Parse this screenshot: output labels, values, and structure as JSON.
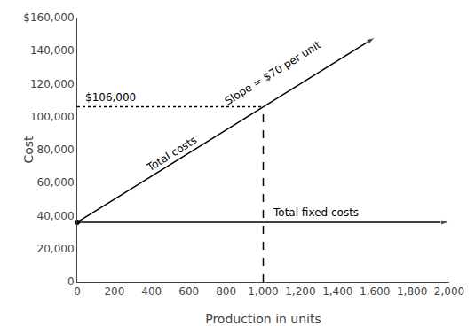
{
  "chart_data": {
    "type": "line",
    "xlabel": "Production in units",
    "ylabel": "Cost",
    "xlim": [
      0,
      2000
    ],
    "ylim": [
      0,
      160000
    ],
    "xticks": [
      0,
      200,
      400,
      600,
      800,
      {
        "value": 1000,
        "label": "1,000"
      },
      {
        "value": 1200,
        "label": "1,200"
      },
      {
        "value": 1400,
        "label": "1,400"
      },
      {
        "value": 1600,
        "label": "1,600"
      },
      {
        "value": 1800,
        "label": "1,800"
      },
      {
        "value": 2000,
        "label": "2,000"
      }
    ],
    "yticks": [
      0,
      {
        "value": 20000,
        "label": "20,000"
      },
      {
        "value": 40000,
        "label": "40,000"
      },
      {
        "value": 60000,
        "label": "60,000"
      },
      {
        "value": 80000,
        "label": "80,000"
      },
      {
        "value": 100000,
        "label": "100,000"
      },
      {
        "value": 120000,
        "label": "120,000"
      },
      {
        "value": 140000,
        "label": "140,000"
      },
      {
        "value": 160000,
        "label": "$160,000"
      }
    ],
    "grid": false,
    "series": [
      {
        "x": [
          0,
          2000
        ],
        "values": [
          36000,
          36000
        ],
        "color": "black",
        "line_style": "solid",
        "marker": "arrow",
        "labels": [
          {
            "text": "Total fixed costs",
            "x": 1040,
            "y": 36000
          }
        ]
      },
      {
        "x": [
          0,
          1600
        ],
        "values": [
          36000,
          148000
        ],
        "color": "black",
        "line_style": "solid",
        "marker": "arrow",
        "labels": [
          {
            "text": "Total costs",
            "x": 530,
            "y": 73000
          },
          {
            "text": "Slope = $70 per unit",
            "x": 1080,
            "y": 122000
          }
        ]
      },
      {
        "x": [
          0,
          1000
        ],
        "values": [
          106000,
          106000
        ],
        "color": "black",
        "line_style": "dotted",
        "labels": [
          {
            "text": "$106,000",
            "x": 35,
            "y": 106000
          }
        ]
      },
      {
        "x": [
          1000,
          1000
        ],
        "values": [
          0,
          106000
        ],
        "color": "black",
        "line_style": "dashed"
      },
      {
        "x": [
          0
        ],
        "values": [
          36000
        ],
        "color": "black",
        "marker": "circle"
      }
    ]
  }
}
